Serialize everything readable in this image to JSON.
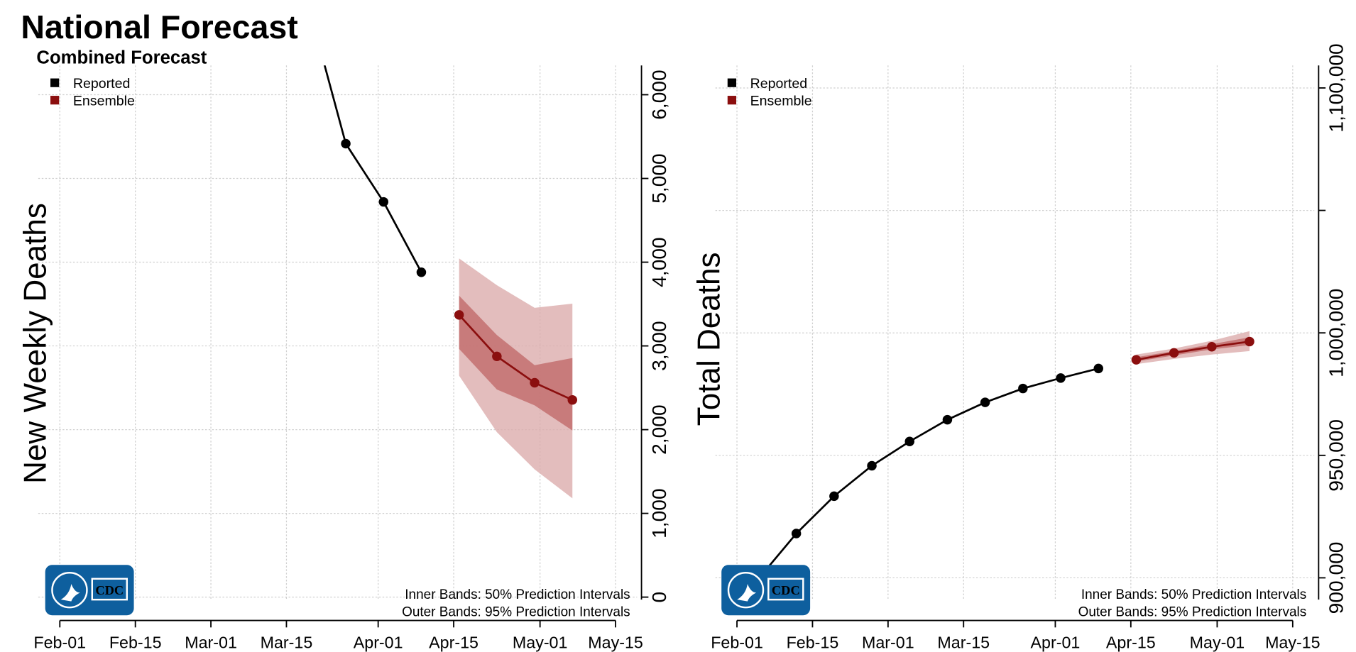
{
  "title": "National Forecast",
  "subtitle": "Combined Forecast",
  "logo": "CDC",
  "chart_data": [
    {
      "type": "line",
      "ylabel": "New Weekly Deaths",
      "xlim": [
        "Jan-28",
        "May-19"
      ],
      "xticks": [
        "Feb-01",
        "Feb-15",
        "Mar-01",
        "Mar-15",
        "Apr-01",
        "Apr-15",
        "May-01",
        "May-15"
      ],
      "ylim": [
        -30,
        6350
      ],
      "yticks": [
        0,
        {
          "value": 1000,
          "label": "1,000"
        },
        {
          "value": 2000,
          "label": "2,000"
        },
        {
          "value": 3000,
          "label": "3,000"
        },
        {
          "value": 4000,
          "label": "4,000"
        },
        {
          "value": 5000,
          "label": "5,000"
        },
        {
          "value": 6000,
          "label": "6,000"
        }
      ],
      "grid": true,
      "legend": "upper left",
      "band_colors": {
        "outer": "#dcadad",
        "inner": "#c06a6a"
      },
      "series": [
        {
          "name": "Reported",
          "color": "#000000",
          "x": [
            "Mar-19",
            "Mar-26",
            "Apr-02",
            "Apr-09"
          ],
          "values": [
            7085,
            5415,
            4720,
            3880
          ]
        },
        {
          "name": "Ensemble",
          "color": "#8b0e0e",
          "x": [
            "Apr-16",
            "Apr-23",
            "Apr-30",
            "May-07"
          ],
          "values": [
            3370,
            2875,
            2560,
            2355
          ],
          "lower50": [
            2965,
            2480,
            2290,
            1990
          ],
          "upper50": [
            3600,
            3130,
            2770,
            2855
          ],
          "lower95": [
            2645,
            1970,
            1525,
            1180
          ],
          "upper95": [
            4045,
            3725,
            3455,
            3505
          ]
        }
      ],
      "annotations": [
        "Inner Bands: 50% Prediction Intervals",
        "Outer Bands: 95% Prediction Intervals"
      ]
    },
    {
      "type": "line",
      "ylabel": "Total Deaths",
      "xlim": [
        "Jan-28",
        "May-19"
      ],
      "xticks": [
        "Feb-01",
        "Feb-15",
        "Mar-01",
        "Mar-15",
        "Apr-01",
        "Apr-15",
        "May-01",
        "May-15"
      ],
      "ylim": [
        891100,
        1109200
      ],
      "yticks": [
        {
          "value": 900000,
          "label": "900,000"
        },
        {
          "value": 950000,
          "label": "950,000"
        },
        {
          "value": 1000000,
          "label": "1,000,000"
        },
        {
          "value": 1050000,
          "label": null
        },
        {
          "value": 1100000,
          "label": "1,100,000"
        }
      ],
      "grid": true,
      "legend": "upper left",
      "band_colors": {
        "outer": "#dcadad",
        "inner": "#c06a6a"
      },
      "series": [
        {
          "name": "Reported",
          "color": "#000000",
          "x": [
            "Feb-05",
            "Feb-12",
            "Feb-19",
            "Feb-26",
            "Mar-05",
            "Mar-12",
            "Mar-19",
            "Mar-26",
            "Apr-02",
            "Apr-09"
          ],
          "values": [
            899650,
            918085,
            933333,
            945745,
            955674,
            964539,
            971631,
            977305,
            981560,
            985461
          ]
        },
        {
          "name": "Ensemble",
          "color": "#8b0e0e",
          "x": [
            "Apr-16",
            "Apr-23",
            "Apr-30",
            "May-07"
          ],
          "values": [
            989007,
            991844,
            994326,
            996454
          ],
          "lower50": [
            988298,
            990780,
            993262,
            995035
          ],
          "upper50": [
            990071,
            992553,
            995390,
            998227
          ],
          "lower95": [
            987234,
            989362,
            991135,
            992553
          ],
          "upper95": [
            991135,
            993617,
            996809,
            1000709
          ]
        }
      ],
      "annotations": [
        "Inner Bands: 50% Prediction Intervals",
        "Outer Bands: 95% Prediction Intervals"
      ]
    }
  ]
}
